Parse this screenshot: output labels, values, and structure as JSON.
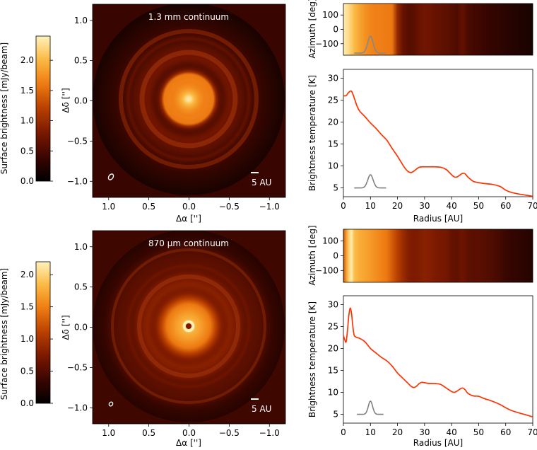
{
  "colors": {
    "line": "#ff3300",
    "beam": "#808080",
    "cmap": [
      "#000000",
      "#3a0600",
      "#7a1800",
      "#b83f00",
      "#ee7a12",
      "#fbb840",
      "#fff3bd"
    ]
  },
  "chart_data": [
    {
      "id": "top",
      "type": "heatmap",
      "label": "1.3 mm continuum",
      "scalebar_label": "5 AU",
      "colorbar": {
        "label": "Surface brightness [mJy/beam]",
        "range": [
          0,
          2.4
        ],
        "ticks": [
          "0.0",
          "0.5",
          "1.0",
          "1.5",
          "2.0"
        ],
        "tick_values": [
          0,
          0.5,
          1.0,
          1.5,
          2.0
        ]
      },
      "image": {
        "xlabel": "Δα ['']",
        "ylabel": "Δδ ['']",
        "xlim": [
          1.2,
          -1.2
        ],
        "ylim": [
          -1.2,
          1.2
        ],
        "xticks": [
          "1.0",
          "0.5",
          "0.0",
          "−0.5",
          "−1.0"
        ],
        "xtick_values": [
          1.0,
          0.5,
          0.0,
          -0.5,
          -1.0
        ],
        "yticks": [
          "−1.0",
          "−0.5",
          "0.0",
          "0.5",
          "1.0"
        ],
        "ytick_values": [
          -1.0,
          -0.5,
          0.0,
          0.5,
          1.0
        ]
      },
      "azimuth_map": {
        "ylabel": "Azimuth [deg]",
        "xlim": [
          0,
          70
        ],
        "ylim": [
          -180,
          180
        ],
        "yticks": [
          "100",
          "0",
          "−100"
        ],
        "ytick_values": [
          100,
          0,
          -100
        ],
        "r": [
          0,
          2,
          4,
          6,
          8,
          10,
          12,
          14,
          16,
          18,
          20,
          22,
          24,
          26,
          28,
          30,
          32,
          34,
          36,
          38,
          40,
          42,
          44,
          46,
          48,
          50,
          52,
          54,
          56,
          58,
          60,
          62,
          64,
          66,
          68,
          70
        ],
        "intensity": [
          0.98,
          0.93,
          0.84,
          0.78,
          0.73,
          0.7,
          0.68,
          0.68,
          0.67,
          0.66,
          0.4,
          0.28,
          0.24,
          0.25,
          0.29,
          0.31,
          0.3,
          0.28,
          0.27,
          0.26,
          0.24,
          0.22,
          0.27,
          0.21,
          0.19,
          0.18,
          0.17,
          0.15,
          0.14,
          0.13,
          0.12,
          0.11,
          0.1,
          0.09,
          0.08,
          0.07
        ]
      },
      "profile": {
        "type": "line",
        "xlabel": "Radius [AU]",
        "ylabel": "Brightness temperature [K]",
        "xlim": [
          0,
          70
        ],
        "ylim": [
          3,
          32
        ],
        "xticks": [
          "0",
          "10",
          "20",
          "30",
          "40",
          "50",
          "60",
          "70"
        ],
        "xtick_values": [
          0,
          10,
          20,
          30,
          40,
          50,
          60,
          70
        ],
        "yticks": [
          "5",
          "10",
          "15",
          "20",
          "25",
          "30"
        ],
        "ytick_values": [
          5,
          10,
          15,
          20,
          25,
          30
        ],
        "x": [
          0,
          1,
          2,
          3,
          4,
          5,
          6,
          8,
          10,
          12,
          14,
          16,
          18,
          20,
          21,
          22,
          23,
          24,
          25,
          26,
          27,
          28,
          29,
          30,
          32,
          34,
          36,
          38,
          40,
          41,
          42,
          43,
          44,
          45,
          46,
          48,
          50,
          52,
          55,
          58,
          60,
          62,
          65,
          68,
          70
        ],
        "y": [
          26,
          26,
          26.8,
          27,
          25.5,
          23.7,
          22.5,
          21.2,
          19.8,
          18.6,
          17.2,
          15.9,
          14,
          12.2,
          11.2,
          10.2,
          9.3,
          8.7,
          8.5,
          8.8,
          9.3,
          9.7,
          9.8,
          9.8,
          9.8,
          9.8,
          9.7,
          9.2,
          8.0,
          7.5,
          7.5,
          7.9,
          8.3,
          8.2,
          7.5,
          6.5,
          6.2,
          6.0,
          5.8,
          5.3,
          4.5,
          4.0,
          3.6,
          3.3,
          3.1
        ],
        "beam_center": 10,
        "beam_sigma": 1.0,
        "beam_base": 5.0,
        "beam_peak": 8.0,
        "beam_halfwidth": 6
      }
    },
    {
      "id": "bottom",
      "type": "heatmap",
      "label": "870 μm continuum",
      "scalebar_label": "5 AU",
      "colorbar": {
        "label": "Surface brightness [mJy/beam]",
        "range": [
          0,
          2.2
        ],
        "ticks": [
          "0.0",
          "0.5",
          "1.0",
          "1.5",
          "2.0"
        ],
        "tick_values": [
          0,
          0.5,
          1.0,
          1.5,
          2.0
        ]
      },
      "image": {
        "xlabel": "Δα ['']",
        "ylabel": "Δδ ['']",
        "xlim": [
          1.2,
          -1.2
        ],
        "ylim": [
          -1.2,
          1.2
        ],
        "xticks": [
          "1.0",
          "0.5",
          "0.0",
          "−0.5",
          "−1.0"
        ],
        "xtick_values": [
          1.0,
          0.5,
          0.0,
          -0.5,
          -1.0
        ],
        "yticks": [
          "−1.0",
          "−0.5",
          "0.0",
          "0.5",
          "1.0"
        ],
        "ytick_values": [
          -1.0,
          -0.5,
          0.0,
          0.5,
          1.0
        ]
      },
      "azimuth_map": {
        "ylabel": "Azimuth [deg]",
        "xlim": [
          0,
          70
        ],
        "ylim": [
          -180,
          180
        ],
        "yticks": [
          "100",
          "0",
          "−100"
        ],
        "ytick_values": [
          100,
          0,
          -100
        ],
        "r": [
          0,
          1,
          2,
          3,
          4,
          6,
          8,
          10,
          12,
          14,
          16,
          18,
          20,
          22,
          24,
          26,
          28,
          30,
          32,
          34,
          36,
          38,
          40,
          42,
          44,
          46,
          48,
          50,
          52,
          54,
          56,
          58,
          60,
          62,
          64,
          66,
          68,
          70
        ],
        "intensity": [
          0.55,
          0.75,
          0.9,
          0.98,
          0.85,
          0.8,
          0.78,
          0.75,
          0.72,
          0.69,
          0.66,
          0.58,
          0.5,
          0.42,
          0.36,
          0.34,
          0.35,
          0.37,
          0.36,
          0.34,
          0.33,
          0.32,
          0.28,
          0.27,
          0.3,
          0.26,
          0.25,
          0.25,
          0.24,
          0.23,
          0.21,
          0.19,
          0.17,
          0.15,
          0.14,
          0.13,
          0.12,
          0.11
        ]
      },
      "profile": {
        "type": "line",
        "xlabel": "Radius [AU]",
        "ylabel": "Brightness temperature [K]",
        "xlim": [
          0,
          70
        ],
        "ylim": [
          3,
          32
        ],
        "xticks": [
          "0",
          "10",
          "20",
          "30",
          "40",
          "50",
          "60",
          "70"
        ],
        "xtick_values": [
          0,
          10,
          20,
          30,
          40,
          50,
          60,
          70
        ],
        "yticks": [
          "5",
          "10",
          "15",
          "20",
          "25",
          "30"
        ],
        "ytick_values": [
          5,
          10,
          15,
          20,
          25,
          30
        ],
        "x": [
          0,
          0.5,
          1,
          1.5,
          2,
          2.5,
          3,
          3.5,
          4,
          5,
          6,
          8,
          10,
          12,
          14,
          16,
          18,
          20,
          22,
          24,
          25,
          26,
          27,
          28,
          29,
          30,
          32,
          34,
          36,
          38,
          40,
          41,
          42,
          43,
          44,
          45,
          46,
          48,
          50,
          52,
          55,
          58,
          60,
          62,
          65,
          68,
          70
        ],
        "y": [
          23,
          22,
          21.5,
          24,
          27.5,
          29.2,
          28,
          25,
          23,
          22.5,
          22.3,
          21.5,
          20,
          19,
          18,
          17.2,
          16,
          14.4,
          13.2,
          12,
          11.4,
          11.1,
          11.4,
          12.0,
          12.3,
          12.2,
          12.0,
          12.0,
          11.8,
          11.0,
          10.2,
          10.0,
          10.3,
          10.7,
          11.0,
          10.6,
          9.8,
          9.2,
          9.1,
          8.6,
          8.0,
          7.2,
          6.5,
          5.9,
          5.3,
          4.8,
          4.4
        ],
        "beam_center": 10,
        "beam_sigma": 0.8,
        "beam_base": 5.0,
        "beam_peak": 8.0,
        "beam_halfwidth": 5
      }
    }
  ]
}
